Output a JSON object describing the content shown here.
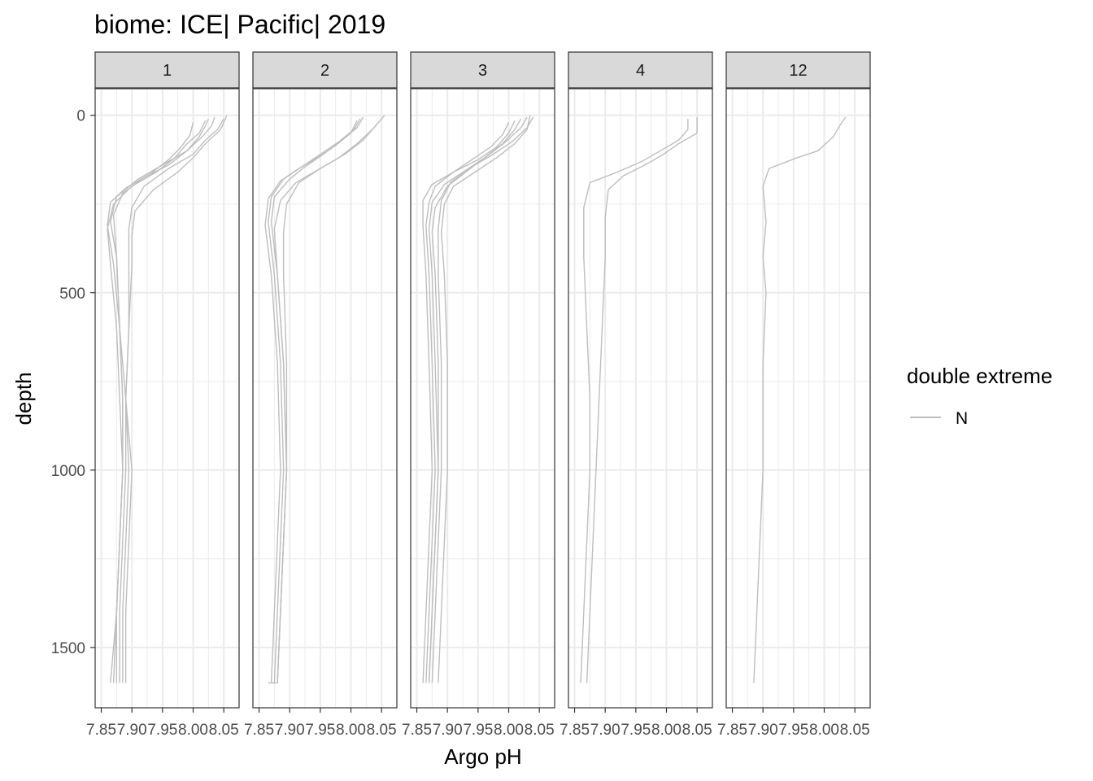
{
  "chart_data": {
    "type": "line",
    "title": "biome: ICE| Pacific| 2019",
    "xlabel": "Argo pH",
    "ylabel": "depth",
    "xlim": [
      7.84,
      8.075
    ],
    "ylim": [
      1670,
      -75
    ],
    "x_ticks": [
      7.85,
      7.9,
      7.95,
      8.0,
      8.05
    ],
    "x_tick_labels": [
      "7.85",
      "7.90",
      "7.95",
      "8.00",
      "8.05"
    ],
    "y_ticks": [
      0,
      500,
      1000,
      1500
    ],
    "y_tick_labels": [
      "0",
      "500",
      "1000",
      "1500"
    ],
    "grid": true,
    "legend": {
      "title": "double extreme",
      "position": "right",
      "entries": [
        {
          "label": "N",
          "color": "#bebebe"
        }
      ]
    },
    "panels": [
      {
        "label": "1",
        "series": [
          {
            "x": [
              8.025,
              8.02,
              8.01,
              7.99,
              7.95,
              7.91,
              7.875,
              7.865,
              7.875,
              7.88,
              7.885,
              7.885,
              7.88,
              7.875,
              7.875
            ],
            "y": [
              10,
              30,
              60,
              100,
              140,
              180,
              230,
              300,
              400,
              600,
              800,
              1000,
              1200,
              1400,
              1600
            ]
          },
          {
            "x": [
              8.035,
              8.03,
              8.015,
              7.99,
              7.96,
              7.92,
              7.885,
              7.87,
              7.875,
              7.88,
              7.89,
              7.89,
              7.885,
              7.88,
              7.88
            ],
            "y": [
              5,
              30,
              60,
              100,
              140,
              175,
              220,
              280,
              400,
              600,
              800,
              1000,
              1200,
              1400,
              1600
            ]
          },
          {
            "x": [
              8.05,
              8.04,
              8.02,
              8.0,
              7.96,
              7.92,
              7.9,
              7.895,
              7.895,
              7.895,
              7.89,
              7.895,
              7.89,
              7.885,
              7.885
            ],
            "y": [
              10,
              40,
              70,
              110,
              150,
              200,
              260,
              320,
              400,
              600,
              800,
              1000,
              1200,
              1400,
              1600
            ]
          },
          {
            "x": [
              8.055,
              8.045,
              8.02,
              8.0,
              7.975,
              7.935,
              7.905,
              7.9,
              7.9,
              7.895,
              7.89,
              7.9,
              7.895,
              7.89,
              7.89
            ],
            "y": [
              0,
              40,
              80,
              120,
              160,
              210,
              270,
              340,
              420,
              600,
              800,
              1000,
              1200,
              1400,
              1600
            ]
          },
          {
            "x": [
              8.02,
              8.01,
              7.99,
              7.97,
              7.94,
              7.9,
              7.87,
              7.86,
              7.865,
              7.875,
              7.88,
              7.885,
              7.88,
              7.875,
              7.87
            ],
            "y": [
              15,
              50,
              80,
              120,
              160,
              200,
              250,
              320,
              420,
              600,
              800,
              1000,
              1200,
              1400,
              1600
            ]
          },
          {
            "x": [
              8.0,
              7.995,
              7.98,
              7.96,
              7.93,
              7.89,
              7.865,
              7.86,
              7.87,
              7.88,
              7.885,
              7.885,
              7.88,
              7.875,
              7.865
            ],
            "y": [
              20,
              55,
              90,
              125,
              165,
              205,
              245,
              310,
              420,
              600,
              800,
              1000,
              1200,
              1400,
              1600
            ]
          }
        ]
      },
      {
        "label": "2",
        "series": [
          {
            "x": [
              8.015,
              8.005,
              7.98,
              7.95,
              7.92,
              7.89,
              7.87,
              7.865,
              7.875,
              7.885,
              7.89,
              7.885,
              7.88,
              7.875,
              7.87
            ],
            "y": [
              10,
              40,
              75,
              110,
              145,
              180,
              230,
              300,
              450,
              700,
              1000,
              1200,
              1400,
              1600,
              1600
            ]
          },
          {
            "x": [
              8.02,
              8.01,
              7.985,
              7.955,
              7.925,
              7.9,
              7.875,
              7.87,
              7.88,
              7.89,
              7.895,
              7.89,
              7.885,
              7.88,
              7.875
            ],
            "y": [
              5,
              35,
              70,
              110,
              145,
              180,
              230,
              300,
              450,
              700,
              1000,
              1200,
              1400,
              1600,
              1600
            ]
          },
          {
            "x": [
              8.055,
              8.04,
              8.02,
              7.99,
              7.95,
              7.915,
              7.895,
              7.89,
              7.89,
              7.895,
              7.895,
              7.89,
              7.885,
              7.88,
              7.88
            ],
            "y": [
              0,
              30,
              70,
              110,
              150,
              190,
              250,
              330,
              450,
              700,
              1000,
              1200,
              1400,
              1600,
              1600
            ]
          },
          {
            "x": [
              8.05,
              8.035,
              8.01,
              7.98,
              7.945,
              7.91,
              7.885,
              7.875,
              7.88,
              7.89,
              7.895,
              7.89,
              7.885,
              7.88,
              7.88
            ],
            "y": [
              10,
              40,
              80,
              120,
              155,
              190,
              240,
              320,
              450,
              700,
              1000,
              1200,
              1400,
              1600,
              1600
            ]
          },
          {
            "x": [
              8.01,
              8.0,
              7.975,
              7.945,
              7.915,
              7.885,
              7.865,
              7.86,
              7.87,
              7.88,
              7.885,
              7.88,
              7.875,
              7.87,
              7.865
            ],
            "y": [
              15,
              50,
              85,
              120,
              150,
              185,
              235,
              310,
              450,
              700,
              1000,
              1200,
              1400,
              1600,
              1600
            ]
          }
        ]
      },
      {
        "label": "3",
        "series": [
          {
            "x": [
              8.02,
              8.01,
              7.99,
              7.96,
              7.93,
              7.9,
              7.88,
              7.875,
              7.88,
              7.885,
              7.885,
              7.88,
              7.875,
              7.87
            ],
            "y": [
              10,
              40,
              80,
              120,
              160,
              200,
              260,
              330,
              450,
              700,
              1000,
              1200,
              1400,
              1600
            ]
          },
          {
            "x": [
              8.03,
              8.02,
              7.995,
              7.965,
              7.93,
              7.895,
              7.875,
              7.87,
              7.875,
              7.88,
              7.885,
              7.88,
              7.875,
              7.87
            ],
            "y": [
              5,
              35,
              75,
              115,
              155,
              195,
              245,
              320,
              450,
              700,
              1000,
              1200,
              1400,
              1600
            ]
          },
          {
            "x": [
              8.035,
              8.03,
              8.01,
              7.98,
              7.945,
              7.91,
              7.895,
              7.89,
              7.895,
              7.9,
              7.9,
              7.895,
              7.89,
              7.885
            ],
            "y": [
              0,
              40,
              80,
              120,
              160,
              200,
              250,
              330,
              450,
              700,
              1000,
              1200,
              1400,
              1600
            ]
          },
          {
            "x": [
              8.01,
              8.0,
              7.98,
              7.95,
              7.91,
              7.875,
              7.86,
              7.86,
              7.865,
              7.87,
              7.875,
              7.87,
              7.865,
              7.86
            ],
            "y": [
              15,
              50,
              90,
              125,
              160,
              195,
              240,
              310,
              450,
              700,
              1000,
              1200,
              1400,
              1600
            ]
          },
          {
            "x": [
              8.0,
              7.99,
              7.97,
              7.94,
              7.91,
              7.88,
              7.87,
              7.865,
              7.87,
              7.875,
              7.88,
              7.875,
              7.87,
              7.865
            ],
            "y": [
              20,
              55,
              90,
              125,
              160,
              200,
              245,
              310,
              450,
              700,
              1000,
              1200,
              1400,
              1600
            ]
          },
          {
            "x": [
              8.04,
              8.03,
              8.005,
              7.97,
              7.935,
              7.905,
              7.89,
              7.885,
              7.885,
              7.89,
              7.89,
              7.885,
              7.88,
              7.875
            ],
            "y": [
              5,
              35,
              75,
              115,
              150,
              190,
              240,
              320,
              450,
              700,
              1000,
              1200,
              1400,
              1600
            ]
          }
        ]
      },
      {
        "label": "4",
        "series": [
          {
            "x": [
              8.035,
              8.035,
              8.02,
              7.99,
              7.96,
              7.92,
              7.875,
              7.865,
              7.865,
              7.87,
              7.875,
              7.875,
              7.87,
              7.865,
              7.86
            ],
            "y": [
              10,
              40,
              70,
              100,
              130,
              160,
              190,
              260,
              400,
              600,
              800,
              1000,
              1200,
              1400,
              1600
            ]
          },
          {
            "x": [
              8.05,
              8.05,
              8.02,
              7.995,
              7.965,
              7.93,
              7.905,
              7.9,
              7.9,
              7.895,
              7.89,
              7.885,
              7.88,
              7.875,
              7.87
            ],
            "y": [
              5,
              50,
              80,
              110,
              140,
              170,
              210,
              290,
              400,
              600,
              800,
              1000,
              1200,
              1400,
              1600
            ]
          }
        ]
      },
      {
        "label": "12",
        "series": [
          {
            "x": [
              8.035,
              8.025,
              8.015,
              7.99,
              7.955,
              7.91,
              7.9,
              7.905,
              7.9,
              7.905,
              7.9,
              7.9,
              7.895,
              7.89,
              7.885
            ],
            "y": [
              5,
              30,
              60,
              100,
              120,
              150,
              200,
              300,
              400,
              500,
              700,
              1000,
              1200,
              1400,
              1600
            ]
          }
        ]
      }
    ]
  }
}
